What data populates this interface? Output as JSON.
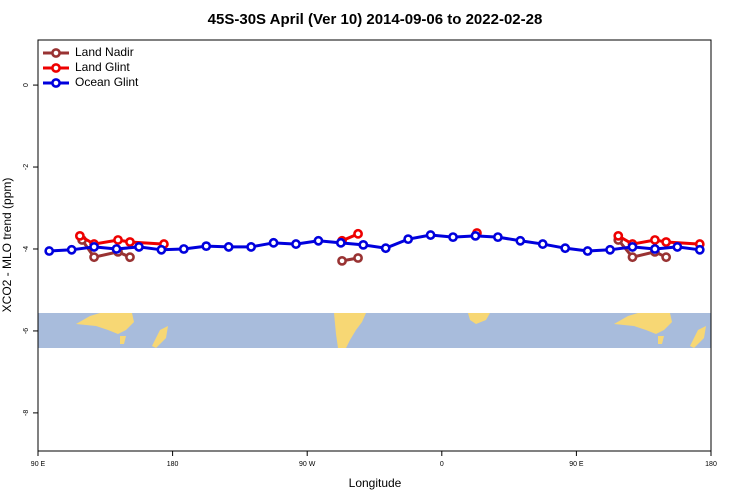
{
  "chart_data": {
    "type": "line",
    "title": "45S-30S April (Ver 10)   2014-09-06 to 2022-02-28",
    "x_label": "Longitude",
    "y_label": "XCO2 - MLO trend (ppm)",
    "xlim": [
      90,
      540
    ],
    "ylim": [
      -8.93,
      1.1
    ],
    "xticks": [
      {
        "value": 90,
        "label": "90 E"
      },
      {
        "value": 180,
        "label": "180"
      },
      {
        "value": 270,
        "label": "90 W"
      },
      {
        "value": 360,
        "label": "0"
      },
      {
        "value": 450,
        "label": "90 E"
      },
      {
        "value": 540,
        "label": "180"
      }
    ],
    "yticks": [
      0,
      -2,
      -4,
      -6,
      -8
    ],
    "legend": "top-left",
    "series": [
      {
        "name": "Land Nadir",
        "color": "#993333",
        "x": [
          119.5,
          127.5,
          143.5,
          151.5,
          220,
          293.3,
          304,
          400,
          478,
          487.5,
          502.5,
          510
        ],
        "values": [
          -3.78,
          -4.2,
          -4.07,
          -4.2,
          null,
          -4.29,
          -4.22,
          null,
          -3.78,
          -4.2,
          -4.07,
          -4.2
        ]
      },
      {
        "name": "Land Glint",
        "color": "#ee0000",
        "x": [
          118,
          127.5,
          143.5,
          151.5,
          174.2,
          220,
          293.3,
          304,
          340,
          383.5,
          440,
          478,
          487.5,
          502.5,
          510,
          532.5
        ],
        "values": [
          -3.68,
          -3.88,
          -3.78,
          -3.83,
          -3.88,
          null,
          -3.8,
          -3.63,
          null,
          -3.61,
          null,
          -3.68,
          -3.88,
          -3.78,
          -3.83,
          -3.88
        ]
      },
      {
        "name": "Ocean Glint",
        "color": "#0000dd",
        "x": [
          97.5,
          112.5,
          127.5,
          142.5,
          157.5,
          172.5,
          187.5,
          202.5,
          217.5,
          232.5,
          247.5,
          262.5,
          277.5,
          292.5,
          307.5,
          322.5,
          337.5,
          352.5,
          367.5,
          382.5,
          397.5,
          412.5,
          427.5,
          442.5,
          457.5,
          472.5,
          487.5,
          502.5,
          517.5,
          532.5
        ],
        "values": [
          -4.05,
          -4.02,
          -3.95,
          -4.0,
          -3.95,
          -4.02,
          -4.0,
          -3.93,
          -3.95,
          -3.95,
          -3.85,
          -3.88,
          -3.8,
          -3.85,
          -3.9,
          -3.98,
          -3.76,
          -3.66,
          -3.71,
          -3.68,
          -3.71,
          -3.8,
          -3.88,
          -3.98,
          -4.05,
          -4.02,
          -3.95,
          -4.0,
          -3.95,
          -4.02
        ]
      }
    ]
  }
}
